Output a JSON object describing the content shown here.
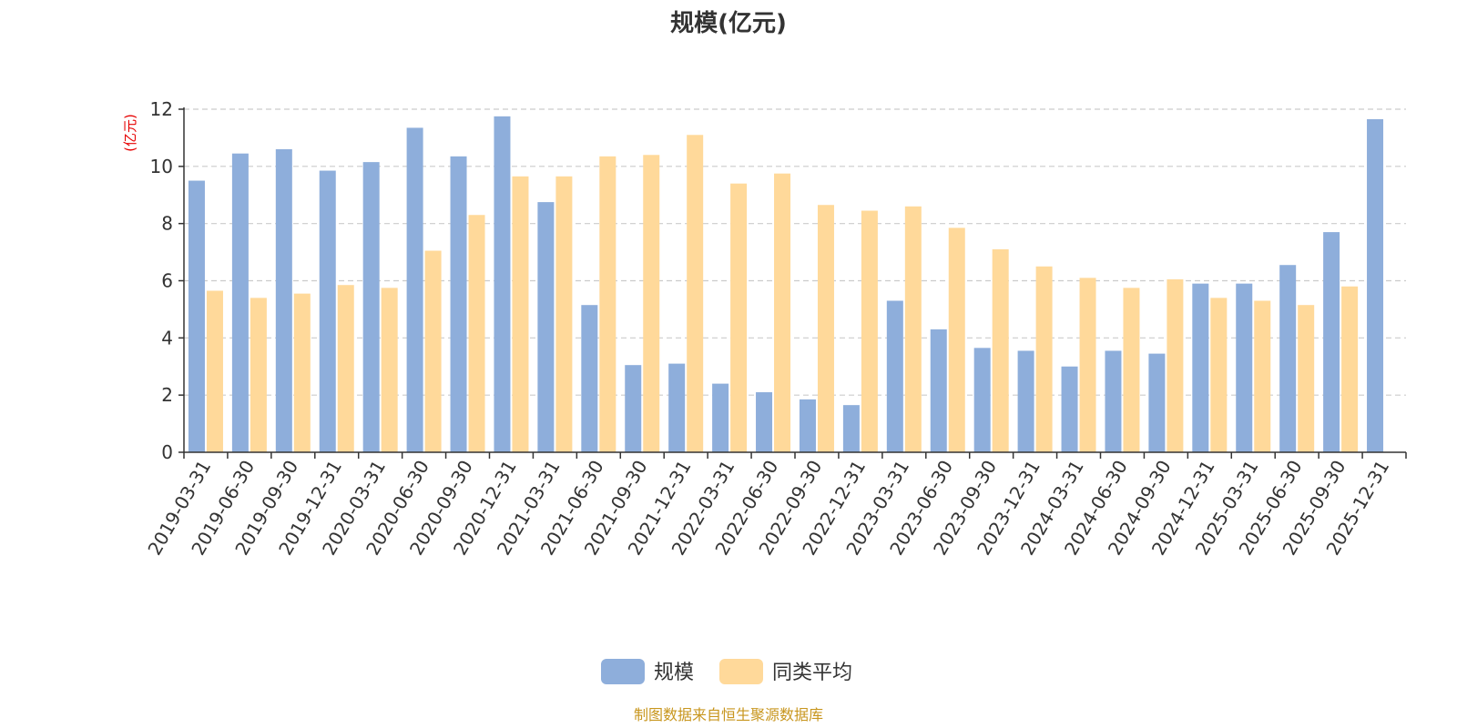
{
  "chart_data": {
    "type": "bar",
    "title": "规模(亿元)",
    "ylabel": "(亿元)",
    "ylim": [
      0,
      12
    ],
    "yticks": [
      0,
      2,
      4,
      6,
      8,
      10,
      12
    ],
    "grid": true,
    "legend_position": "bottom-center",
    "categories": [
      "2019-03-31",
      "2019-06-30",
      "2019-09-30",
      "2019-12-31",
      "2020-03-31",
      "2020-06-30",
      "2020-09-30",
      "2020-12-31",
      "2021-03-31",
      "2021-06-30",
      "2021-09-30",
      "2021-12-31",
      "2022-03-31",
      "2022-06-30",
      "2022-09-30",
      "2022-12-31",
      "2023-03-31",
      "2023-06-30",
      "2023-09-30",
      "2023-12-31",
      "2024-03-31",
      "2024-06-30",
      "2024-09-30",
      "2024-12-31",
      "2025-03-31",
      "2025-06-30",
      "2025-09-30",
      "2025-12-31"
    ],
    "series": [
      {
        "name": "规模",
        "color": "#8eaedb",
        "values": [
          9.5,
          10.45,
          10.6,
          9.85,
          10.15,
          11.35,
          10.35,
          11.75,
          8.75,
          5.15,
          3.05,
          3.1,
          2.4,
          2.1,
          1.85,
          1.65,
          5.3,
          4.3,
          3.65,
          3.55,
          3.0,
          3.55,
          3.45,
          5.9,
          5.9,
          6.55,
          7.7,
          11.65
        ]
      },
      {
        "name": "同类平均",
        "color": "#ffd99a",
        "values": [
          5.65,
          5.4,
          5.55,
          5.85,
          5.75,
          7.05,
          8.3,
          9.65,
          9.65,
          10.35,
          10.4,
          11.1,
          9.4,
          9.75,
          8.65,
          8.45,
          8.6,
          7.85,
          7.1,
          6.5,
          6.1,
          5.75,
          6.05,
          5.4,
          5.3,
          5.15,
          5.8,
          null
        ]
      }
    ],
    "source": "制图数据来自恒生聚源数据库"
  }
}
